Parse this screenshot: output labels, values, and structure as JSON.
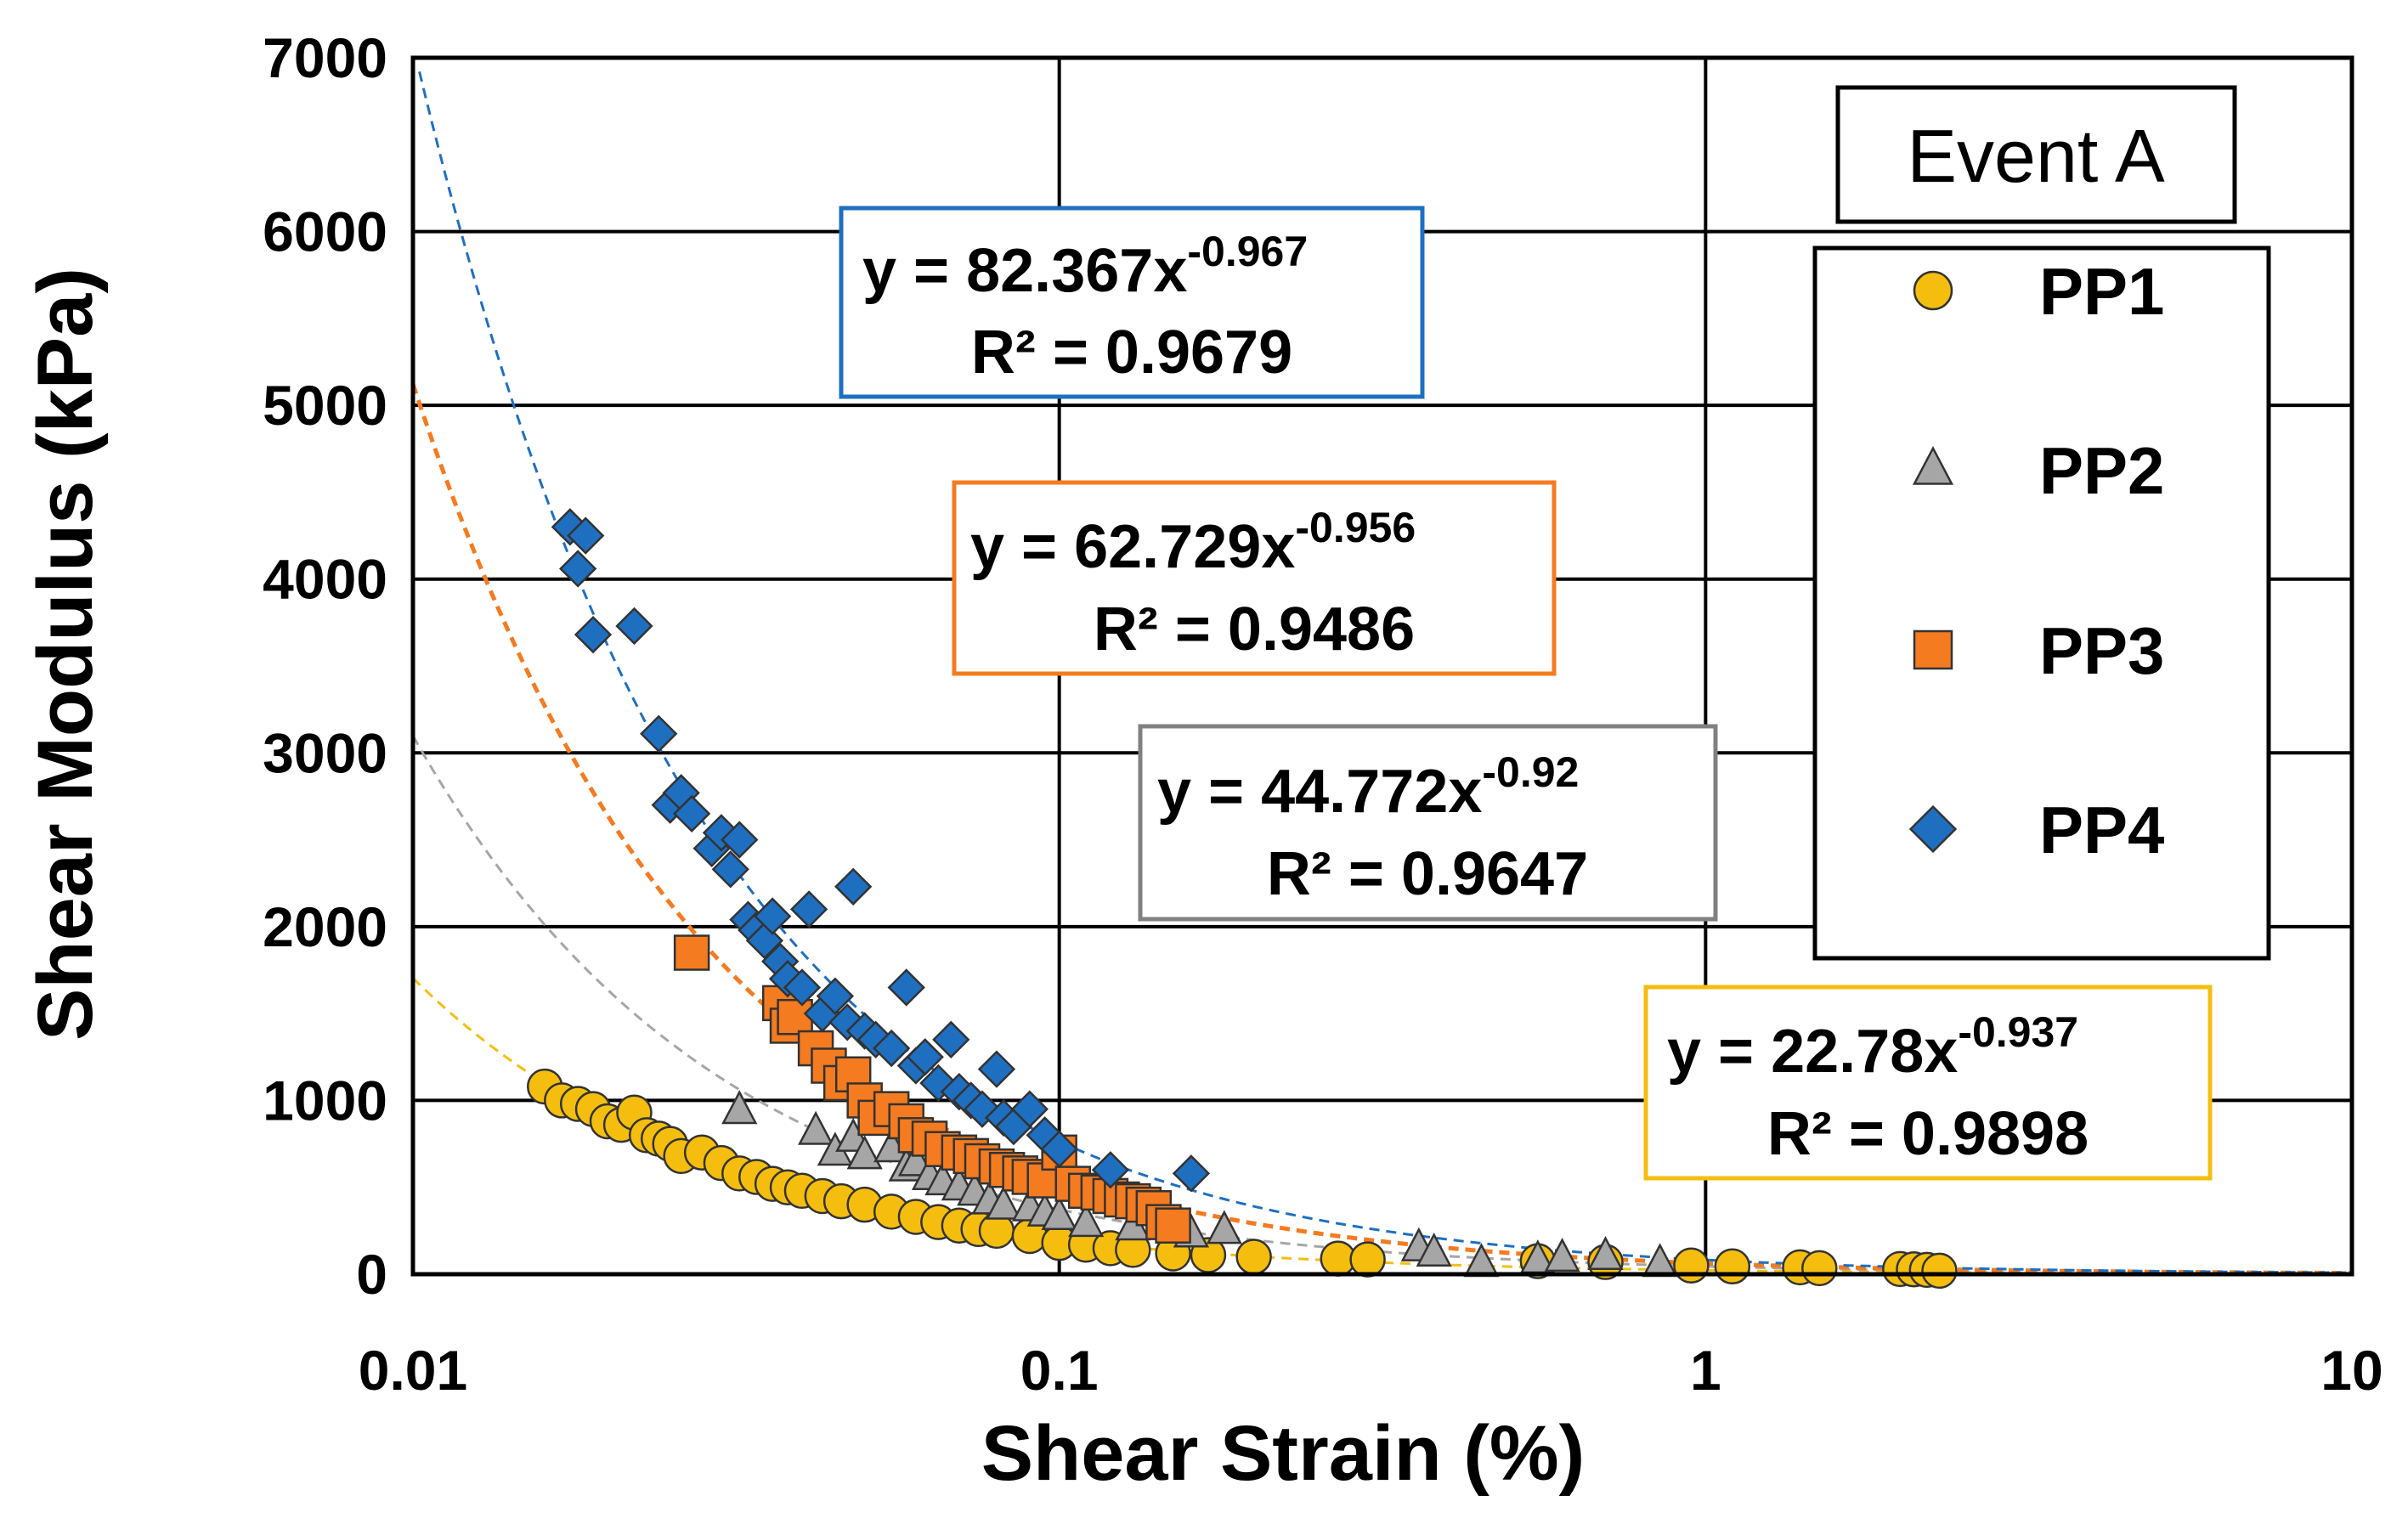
{
  "chart_data": {
    "type": "scatter",
    "title": "",
    "annotation_title": "Event A",
    "xlabel": "Shear Strain (%)",
    "ylabel": "Shear Modulus (kPa)",
    "xscale": "log",
    "xlim": [
      0.01,
      10
    ],
    "ylim": [
      0,
      7000
    ],
    "xticks": [
      0.01,
      0.1,
      1,
      10
    ],
    "xtick_labels": [
      "0.01",
      "0.1",
      "1",
      "10"
    ],
    "yticks": [
      0,
      1000,
      2000,
      3000,
      4000,
      5000,
      6000,
      7000
    ],
    "ytick_labels": [
      "0",
      "1000",
      "2000",
      "3000",
      "4000",
      "5000",
      "6000",
      "7000"
    ],
    "grid": true,
    "legend_position": "right",
    "series": [
      {
        "name": "PP1",
        "marker": "circle",
        "color": "#F5BE0F",
        "trend_color": "#F5BE0F",
        "fit": {
          "a": 22.78,
          "b": -0.937,
          "equation_prefix": "y = 22.78x",
          "exponent": "-0.937",
          "r2": "R² = 0.9898"
        },
        "x": [
          0.016,
          0.017,
          0.018,
          0.019,
          0.02,
          0.021,
          0.022,
          0.023,
          0.024,
          0.025,
          0.026,
          0.028,
          0.03,
          0.032,
          0.034,
          0.036,
          0.038,
          0.04,
          0.043,
          0.046,
          0.05,
          0.055,
          0.06,
          0.065,
          0.07,
          0.075,
          0.08,
          0.09,
          0.1,
          0.11,
          0.12,
          0.13,
          0.15,
          0.17,
          0.2,
          0.27,
          0.3,
          0.55,
          0.7,
          0.95,
          1.1,
          1.4,
          1.5,
          2.0,
          2.1,
          2.2,
          2.3
        ],
        "y": [
          1080,
          1000,
          980,
          950,
          880,
          860,
          930,
          800,
          780,
          750,
          680,
          700,
          640,
          580,
          560,
          520,
          500,
          480,
          450,
          420,
          400,
          360,
          330,
          300,
          280,
          260,
          250,
          220,
          180,
          170,
          150,
          140,
          120,
          110,
          100,
          90,
          85,
          75,
          70,
          50,
          45,
          40,
          35,
          30,
          28,
          25,
          20
        ]
      },
      {
        "name": "PP2",
        "marker": "triangle",
        "color": "#A6A6A6",
        "trend_color": "#A6A6A6",
        "fit": {
          "a": 44.772,
          "b": -0.92,
          "equation_prefix": "y = 44.772x",
          "exponent": "-0.92",
          "r2": "R² = 0.9647"
        },
        "x": [
          0.032,
          0.042,
          0.045,
          0.048,
          0.05,
          0.055,
          0.058,
          0.06,
          0.063,
          0.066,
          0.07,
          0.074,
          0.078,
          0.082,
          0.09,
          0.095,
          0.1,
          0.11,
          0.13,
          0.16,
          0.18,
          0.36,
          0.38,
          0.45,
          0.55,
          0.6,
          0.7,
          0.85
        ],
        "y": [
          940,
          820,
          700,
          780,
          680,
          720,
          610,
          640,
          560,
          530,
          500,
          470,
          420,
          390,
          380,
          350,
          330,
          290,
          270,
          230,
          250,
          150,
          120,
          60,
          80,
          90,
          100,
          60
        ]
      },
      {
        "name": "PP3",
        "marker": "square",
        "color": "#F47B20",
        "trend_color": "#F47B20",
        "fit": {
          "a": 62.729,
          "b": -0.956,
          "equation_prefix": "y = 62.729x",
          "exponent": "-0.956",
          "r2": "R² = 0.9486"
        },
        "x": [
          0.027,
          0.037,
          0.038,
          0.039,
          0.042,
          0.044,
          0.046,
          0.048,
          0.05,
          0.052,
          0.055,
          0.058,
          0.06,
          0.063,
          0.066,
          0.07,
          0.073,
          0.076,
          0.08,
          0.083,
          0.087,
          0.09,
          0.095,
          0.1,
          0.105,
          0.11,
          0.115,
          0.12,
          0.125,
          0.13,
          0.135,
          0.14,
          0.145,
          0.15
        ],
        "y": [
          1850,
          1560,
          1430,
          1480,
          1300,
          1200,
          1100,
          1150,
          1000,
          900,
          950,
          880,
          800,
          780,
          720,
          700,
          680,
          650,
          620,
          600,
          580,
          560,
          540,
          700,
          520,
          480,
          470,
          450,
          430,
          420,
          400,
          380,
          300,
          280
        ]
      },
      {
        "name": "PP4",
        "marker": "diamond",
        "color": "#1F6FC0",
        "trend_color": "#1F6FC0",
        "fit": {
          "a": 82.367,
          "b": -0.967,
          "equation_prefix": "y = 82.367x",
          "exponent": "-0.967",
          "r2": "R² = 0.9679"
        },
        "x": [
          0.0175,
          0.018,
          0.0185,
          0.019,
          0.022,
          0.024,
          0.025,
          0.026,
          0.027,
          0.029,
          0.03,
          0.031,
          0.032,
          0.033,
          0.034,
          0.035,
          0.036,
          0.037,
          0.038,
          0.04,
          0.041,
          0.043,
          0.045,
          0.047,
          0.048,
          0.05,
          0.052,
          0.055,
          0.058,
          0.06,
          0.062,
          0.065,
          0.068,
          0.07,
          0.073,
          0.076,
          0.08,
          0.082,
          0.085,
          0.09,
          0.095,
          0.1,
          0.12,
          0.16
        ],
        "y": [
          4300,
          4060,
          4250,
          3680,
          3730,
          3110,
          2700,
          2770,
          2650,
          2450,
          2540,
          2330,
          2500,
          2040,
          1980,
          1920,
          2060,
          1800,
          1700,
          1650,
          2100,
          1500,
          1600,
          1450,
          2230,
          1400,
          1350,
          1300,
          1650,
          1200,
          1250,
          1100,
          1350,
          1050,
          1000,
          950,
          1180,
          900,
          850,
          950,
          800,
          720,
          600,
          580
        ]
      }
    ],
    "legend": [
      "PP1",
      "PP2",
      "PP3",
      "PP4"
    ]
  }
}
